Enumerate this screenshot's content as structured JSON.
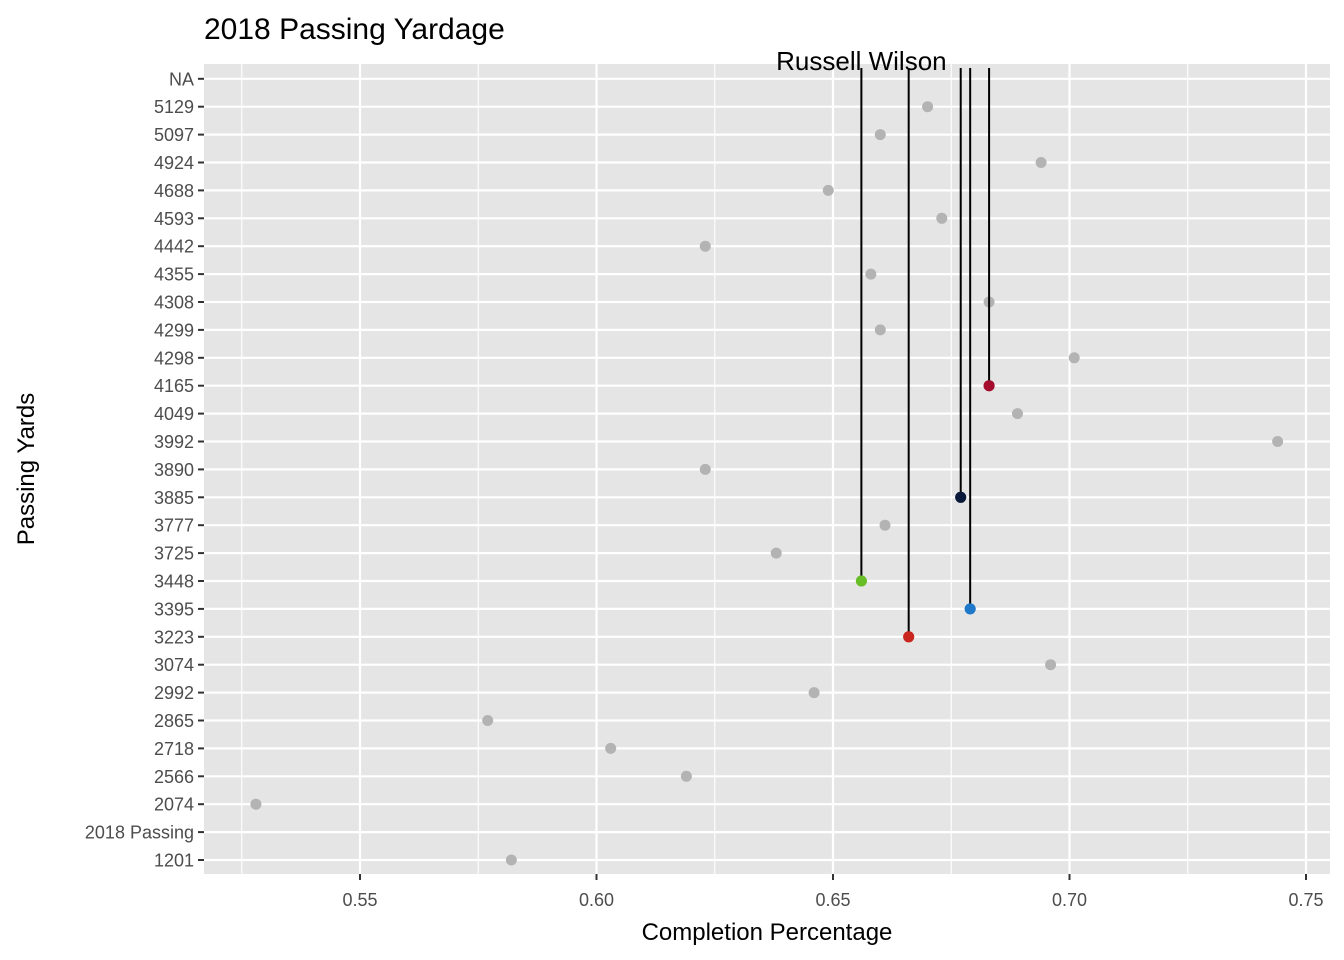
{
  "chart_data": {
    "type": "scatter",
    "title": "2018 Passing Yardage",
    "xlabel": "Completion Percentage",
    "ylabel": "Passing Yards",
    "xlim": [
      0.52,
      0.755
    ],
    "x_ticks": [
      "0.55",
      "0.60",
      "0.65",
      "0.70",
      "0.75"
    ],
    "y_categories": [
      "1201",
      "2018 Passing",
      "2074",
      "2566",
      "2718",
      "2865",
      "2992",
      "3074",
      "3223",
      "3395",
      "3448",
      "3725",
      "3777",
      "3885",
      "3890",
      "3992",
      "4049",
      "4165",
      "4298",
      "4299",
      "4308",
      "4355",
      "4442",
      "4593",
      "4688",
      "4924",
      "5097",
      "5129",
      "NA"
    ],
    "grid": true,
    "legend": "none",
    "colors": {
      "panel": "#e5e5e5",
      "grid": "#ffffff",
      "default_point": "#b3b3b3",
      "label_line": "#000000"
    },
    "points": [
      {
        "y": "5129",
        "x": 0.67
      },
      {
        "y": "5097",
        "x": 0.66
      },
      {
        "y": "4924",
        "x": 0.694
      },
      {
        "y": "4688",
        "x": 0.649
      },
      {
        "y": "4593",
        "x": 0.673
      },
      {
        "y": "4442",
        "x": 0.623
      },
      {
        "y": "4355",
        "x": 0.658
      },
      {
        "y": "4308",
        "x": 0.683
      },
      {
        "y": "4299",
        "x": 0.66
      },
      {
        "y": "4298",
        "x": 0.701
      },
      {
        "y": "4165",
        "x": 0.683,
        "color": "#a50d2f",
        "label": ""
      },
      {
        "y": "4049",
        "x": 0.689
      },
      {
        "y": "3992",
        "x": 0.744
      },
      {
        "y": "3890",
        "x": 0.623
      },
      {
        "y": "3885",
        "x": 0.677,
        "color": "#0b1a3a",
        "label": ""
      },
      {
        "y": "3777",
        "x": 0.661
      },
      {
        "y": "3725",
        "x": 0.638
      },
      {
        "y": "3448",
        "x": 0.656,
        "color": "#69be28",
        "label": "Russell Wilson"
      },
      {
        "y": "3395",
        "x": 0.679,
        "color": "#1f78c9",
        "label": ""
      },
      {
        "y": "3223",
        "x": 0.666,
        "color": "#c8261e",
        "label": ""
      },
      {
        "y": "3074",
        "x": 0.696
      },
      {
        "y": "2992",
        "x": 0.646
      },
      {
        "y": "2865",
        "x": 0.577
      },
      {
        "y": "2718",
        "x": 0.603
      },
      {
        "y": "2566",
        "x": 0.619
      },
      {
        "y": "2074",
        "x": 0.528
      },
      {
        "y": "1201",
        "x": 0.582
      }
    ]
  }
}
